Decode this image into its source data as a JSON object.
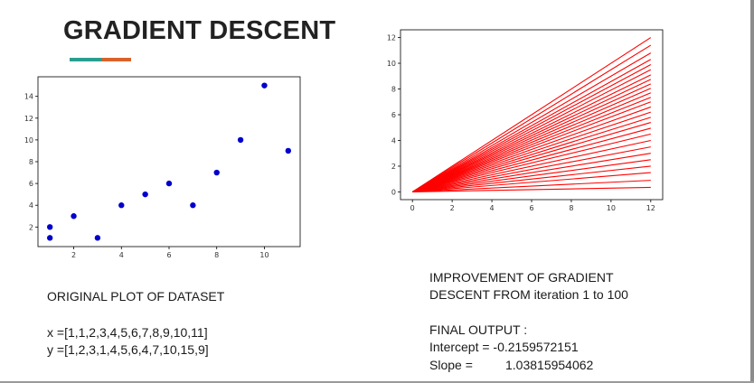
{
  "title": "GRADIENT DESCENT",
  "colors": {
    "accent_teal": "#2a9d8f",
    "accent_orange": "#d9622b",
    "point": "#0000cc",
    "line": "#ff0000"
  },
  "left_caption": {
    "heading": "ORIGINAL PLOT OF DATASET",
    "x_line": "x =[1,1,2,3,4,5,6,7,8,9,10,11]",
    "y_line": "y =[1,2,3,1,4,5,6,4,7,10,15,9]"
  },
  "right_caption": {
    "line1": "IMPROVEMENT OF GRADIENT",
    "line2": "DESCENT FROM iteration 1 to 100",
    "output_heading": "FINAL OUTPUT :",
    "intercept_label": "Intercept = -0.2159572151",
    "slope_label": "Slope =",
    "slope_value": "1.03815954062"
  },
  "chart_data": [
    {
      "type": "scatter",
      "x": [
        1,
        1,
        2,
        3,
        4,
        5,
        6,
        7,
        8,
        9,
        10,
        11
      ],
      "y": [
        1,
        2,
        3,
        1,
        4,
        5,
        6,
        4,
        7,
        10,
        15,
        9
      ],
      "xlim": [
        0.5,
        11.5
      ],
      "ylim": [
        0.2,
        15.8
      ],
      "xticks": [
        2,
        4,
        6,
        8,
        10
      ],
      "yticks": [
        2,
        4,
        6,
        8,
        10,
        12,
        14
      ],
      "color": "#0000cc",
      "title": "",
      "xlabel": "",
      "ylabel": ""
    },
    {
      "type": "line",
      "x": [
        0,
        12
      ],
      "series": [
        {
          "values": [
            0,
            12.0
          ]
        },
        {
          "values": [
            0,
            11.4
          ]
        },
        {
          "values": [
            0,
            10.8
          ]
        },
        {
          "values": [
            0,
            10.3
          ]
        },
        {
          "values": [
            0,
            9.9
          ]
        },
        {
          "values": [
            0,
            9.5
          ]
        },
        {
          "values": [
            0,
            9.1
          ]
        },
        {
          "values": [
            0,
            8.75
          ]
        },
        {
          "values": [
            0,
            8.4
          ]
        },
        {
          "values": [
            0,
            8.05
          ]
        },
        {
          "values": [
            0,
            7.7
          ]
        },
        {
          "values": [
            0,
            7.35
          ]
        },
        {
          "values": [
            0,
            7.0
          ]
        },
        {
          "values": [
            0,
            6.6
          ]
        },
        {
          "values": [
            0,
            6.2
          ]
        },
        {
          "values": [
            0,
            5.8
          ]
        },
        {
          "values": [
            0,
            5.4
          ]
        },
        {
          "values": [
            0,
            4.95
          ]
        },
        {
          "values": [
            0,
            4.5
          ]
        },
        {
          "values": [
            0,
            4.0
          ]
        },
        {
          "values": [
            0,
            3.5
          ]
        },
        {
          "values": [
            0,
            3.0
          ]
        },
        {
          "values": [
            0,
            2.5
          ]
        },
        {
          "values": [
            0,
            2.0
          ]
        },
        {
          "values": [
            0,
            1.5
          ]
        },
        {
          "values": [
            0,
            0.9
          ]
        },
        {
          "values": [
            0,
            0.35
          ]
        }
      ],
      "xlim": [
        -0.6,
        12.6
      ],
      "ylim": [
        -0.6,
        12.6
      ],
      "xticks": [
        0,
        2,
        4,
        6,
        8,
        10,
        12
      ],
      "yticks": [
        0,
        2,
        4,
        6,
        8,
        10,
        12
      ],
      "color": "#ff0000",
      "title": "",
      "xlabel": "",
      "ylabel": ""
    }
  ]
}
